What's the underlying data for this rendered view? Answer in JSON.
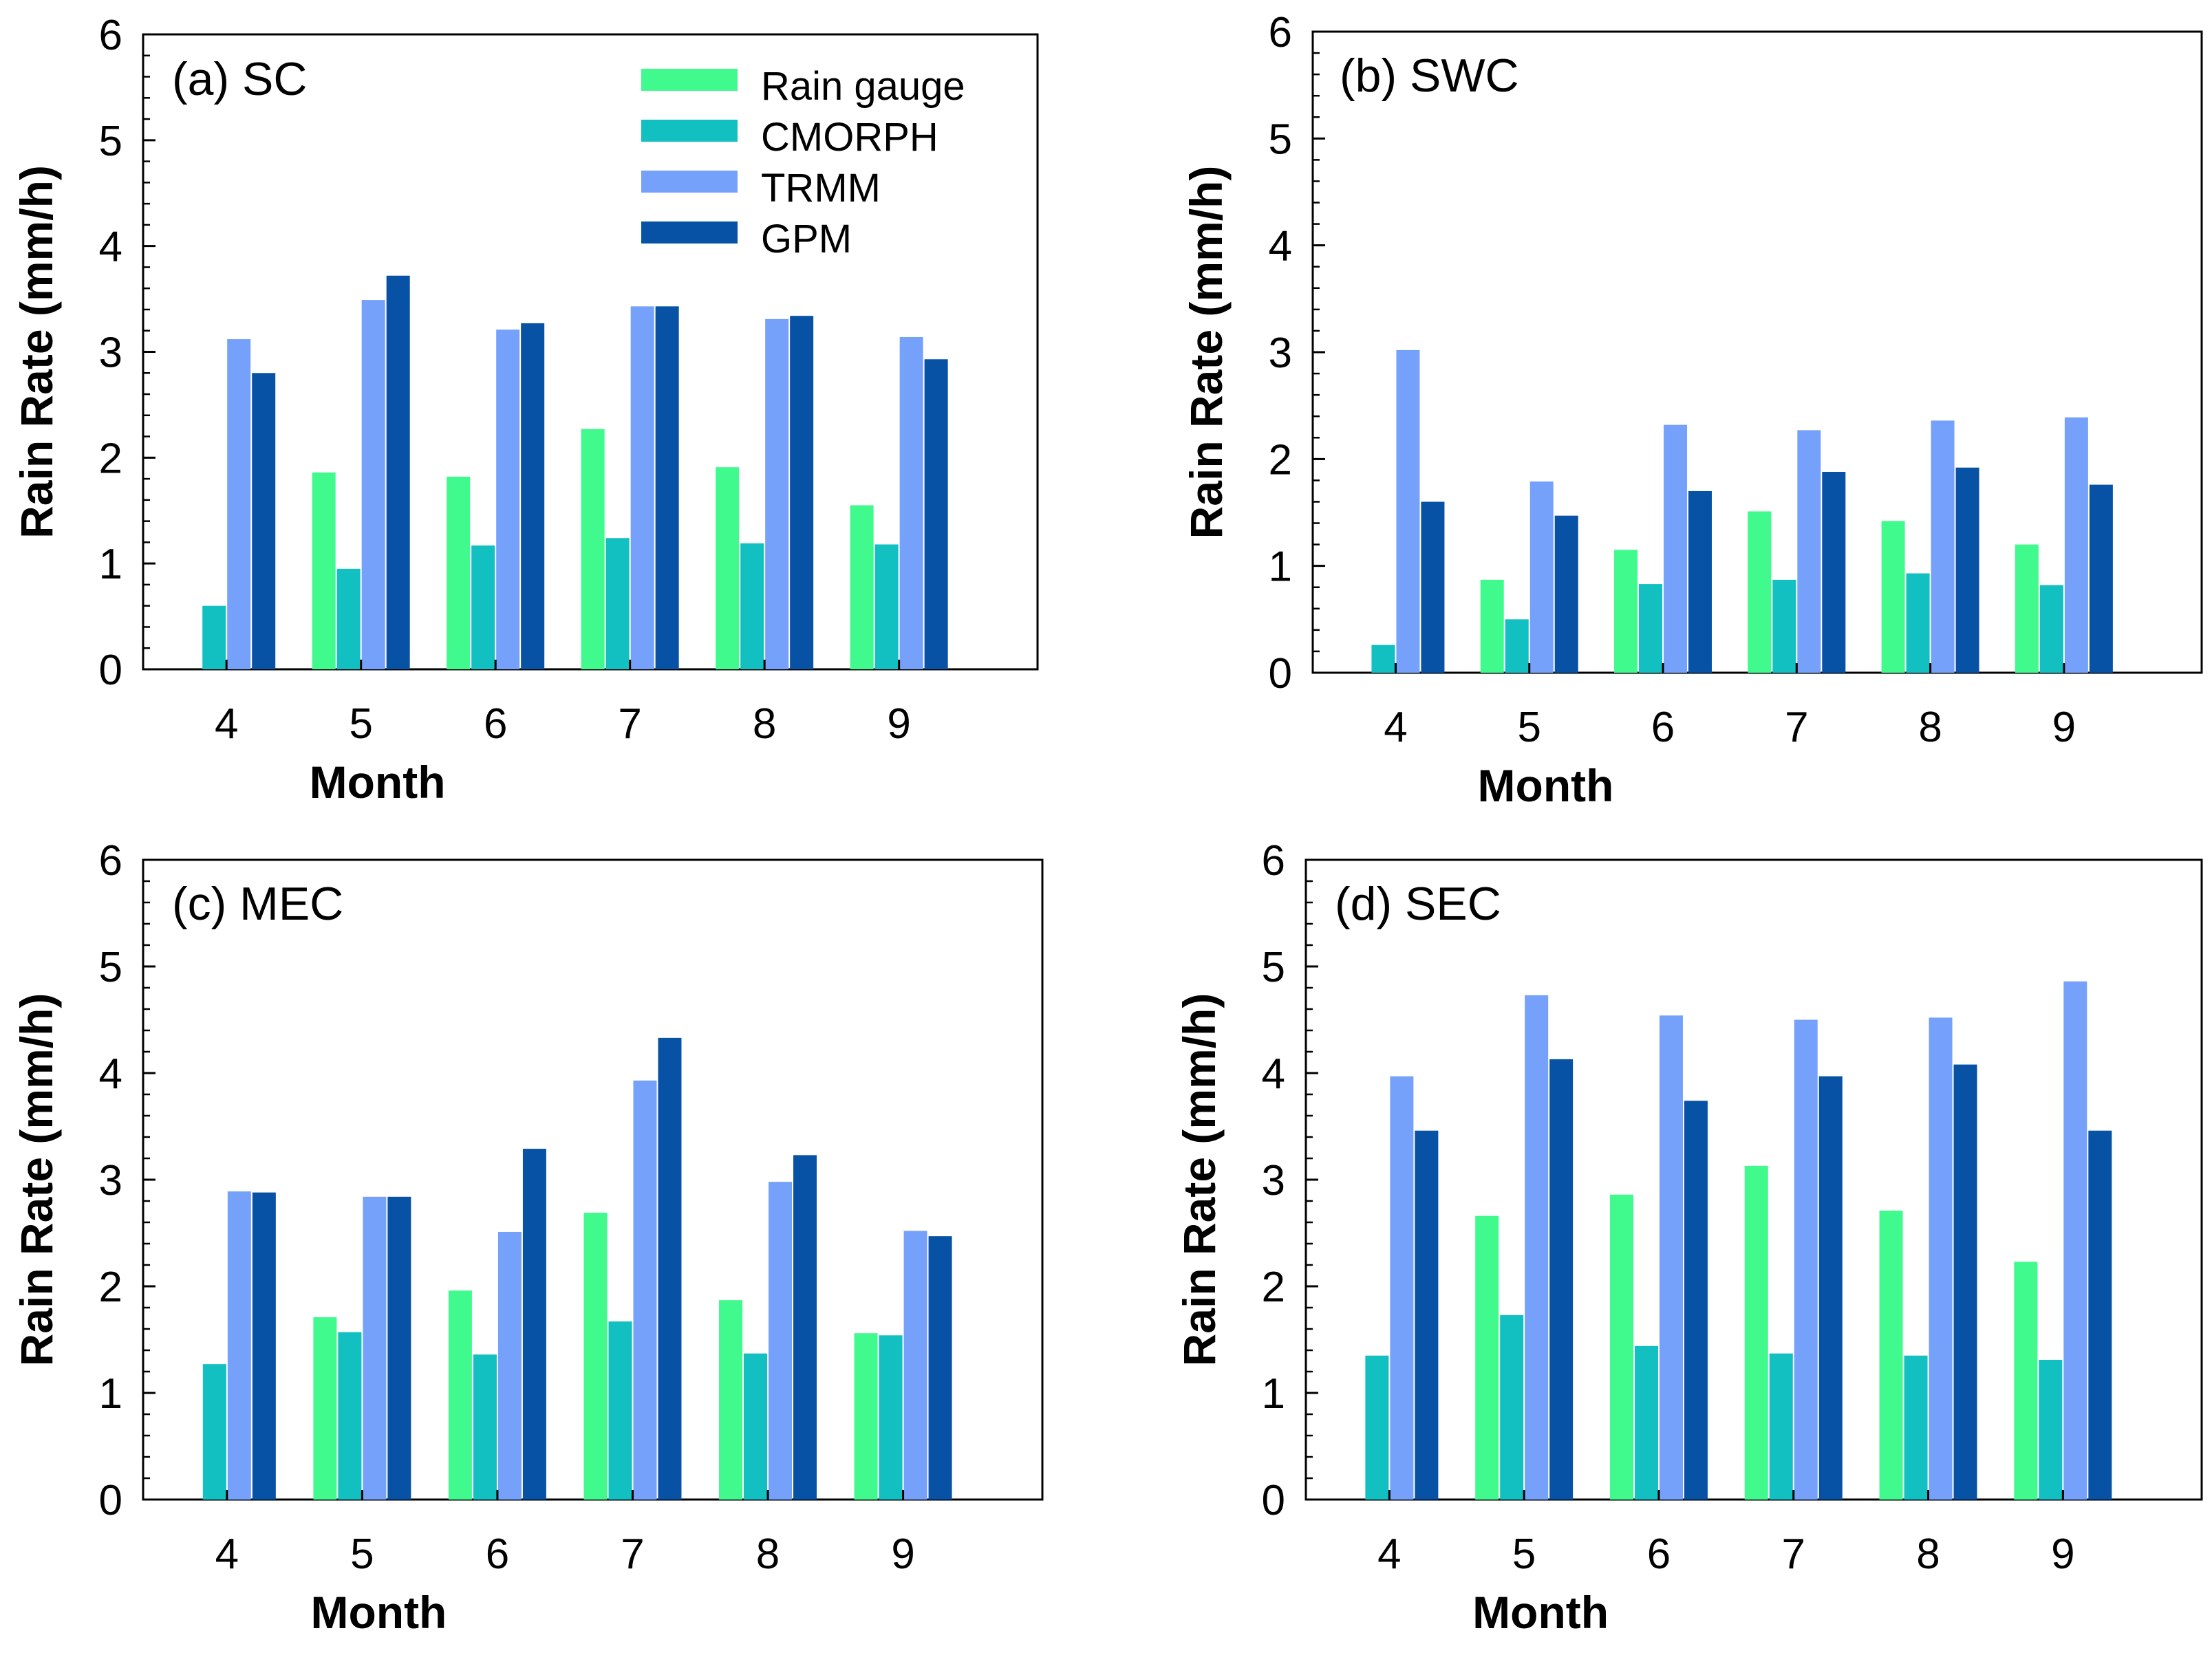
{
  "chart_data": [
    {
      "type": "bar",
      "title": "(a) SC",
      "xlabel": "Month",
      "ylabel": "Rain Rate (mm/h)",
      "ylim": [
        0,
        6
      ],
      "yticks": [
        "0",
        "1",
        "2",
        "3",
        "4",
        "5",
        "6"
      ],
      "categories": [
        "4",
        "5",
        "6",
        "7",
        "8",
        "9"
      ],
      "series": [
        {
          "name": "Rain gauge",
          "values": [
            null,
            1.86,
            1.82,
            2.27,
            1.91,
            1.55
          ]
        },
        {
          "name": "CMORPH",
          "values": [
            0.6,
            0.95,
            1.17,
            1.24,
            1.19,
            1.18
          ]
        },
        {
          "name": "TRMM",
          "values": [
            3.12,
            3.49,
            3.21,
            3.43,
            3.31,
            3.14
          ]
        },
        {
          "name": "GPM",
          "values": [
            2.8,
            3.72,
            3.27,
            3.43,
            3.34,
            2.93
          ]
        }
      ]
    },
    {
      "type": "bar",
      "title": "(b) SWC",
      "xlabel": "Month",
      "ylabel": "Rain Rate (mm/h)",
      "ylim": [
        0,
        6
      ],
      "yticks": [
        "0",
        "1",
        "2",
        "3",
        "4",
        "5",
        "6"
      ],
      "categories": [
        "4",
        "5",
        "6",
        "7",
        "8",
        "9"
      ],
      "series": [
        {
          "name": "Rain gauge",
          "values": [
            null,
            0.87,
            1.15,
            1.51,
            1.42,
            1.2
          ]
        },
        {
          "name": "CMORPH",
          "values": [
            0.26,
            0.5,
            0.83,
            0.87,
            0.93,
            0.82
          ]
        },
        {
          "name": "TRMM",
          "values": [
            3.02,
            1.79,
            2.32,
            2.27,
            2.36,
            2.39
          ]
        },
        {
          "name": "GPM",
          "values": [
            1.6,
            1.47,
            1.7,
            1.88,
            1.92,
            1.76
          ]
        }
      ]
    },
    {
      "type": "bar",
      "title": "(c) MEC",
      "xlabel": "Month",
      "ylabel": "Rain Rate (mm/h)",
      "ylim": [
        0,
        6
      ],
      "yticks": [
        "0",
        "1",
        "2",
        "3",
        "4",
        "5",
        "6"
      ],
      "categories": [
        "4",
        "5",
        "6",
        "7",
        "8",
        "9"
      ],
      "series": [
        {
          "name": "Rain gauge",
          "values": [
            null,
            1.71,
            1.96,
            2.69,
            1.87,
            1.56
          ]
        },
        {
          "name": "CMORPH",
          "values": [
            1.27,
            1.57,
            1.36,
            1.67,
            1.37,
            1.54
          ]
        },
        {
          "name": "TRMM",
          "values": [
            2.89,
            2.84,
            2.51,
            3.93,
            2.98,
            2.52
          ]
        },
        {
          "name": "GPM",
          "values": [
            2.88,
            2.84,
            3.29,
            4.33,
            3.23,
            2.47
          ]
        }
      ]
    },
    {
      "type": "bar",
      "title": "(d) SEC",
      "xlabel": "Month",
      "ylabel": "Rain Rate (mm/h)",
      "ylim": [
        0,
        6
      ],
      "yticks": [
        "0",
        "1",
        "2",
        "3",
        "4",
        "5",
        "6"
      ],
      "categories": [
        "4",
        "5",
        "6",
        "7",
        "8",
        "9"
      ],
      "series": [
        {
          "name": "Rain gauge",
          "values": [
            null,
            2.66,
            2.86,
            3.13,
            2.71,
            2.23
          ]
        },
        {
          "name": "CMORPH",
          "values": [
            1.35,
            1.73,
            1.44,
            1.37,
            1.35,
            1.31
          ]
        },
        {
          "name": "TRMM",
          "values": [
            3.97,
            4.73,
            4.54,
            4.5,
            4.52,
            4.86
          ]
        },
        {
          "name": "GPM",
          "values": [
            3.46,
            4.13,
            3.74,
            3.97,
            4.08,
            3.46
          ]
        }
      ]
    }
  ],
  "legend": {
    "entries": [
      "Rain gauge",
      "CMORPH",
      "TRMM",
      "GPM"
    ],
    "placement": "top-center of panel (a)"
  },
  "colors": {
    "Rain gauge": "#40fa8d",
    "CMORPH": "#12bfc1",
    "TRMM": "#76a1fa",
    "GPM": "#0752a5"
  }
}
